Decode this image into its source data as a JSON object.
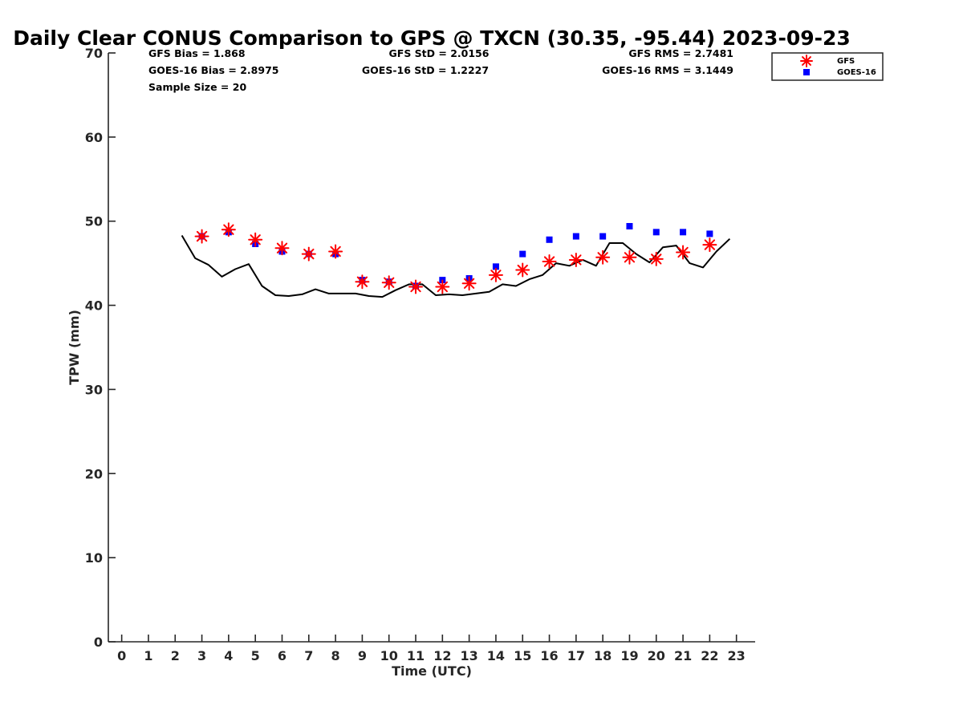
{
  "chart_data": {
    "type": "scatter",
    "title": "Daily Clear CONUS Comparison to GPS @ TXCN (30.35, -95.44) 2023-09-23",
    "xlabel": "Time (UTC)",
    "ylabel": "TPW (mm)",
    "xlim": [
      -0.5,
      23.7
    ],
    "ylim": [
      0,
      70
    ],
    "xticks": [
      "0",
      "1",
      "2",
      "3",
      "4",
      "5",
      "6",
      "7",
      "8",
      "9",
      "10",
      "11",
      "12",
      "13",
      "14",
      "15",
      "16",
      "17",
      "18",
      "19",
      "20",
      "21",
      "22",
      "23"
    ],
    "yticks": [
      "0",
      "10",
      "20",
      "30",
      "40",
      "50",
      "60",
      "70"
    ],
    "grid": false,
    "legend_position": "top-right",
    "stats": {
      "gfs_bias": "GFS Bias = 1.868",
      "goes_bias": "GOES-16 Bias = 2.8975",
      "sample_size": "Sample Size = 20",
      "gfs_std": "GFS StD = 2.0156",
      "goes_std": "GOES-16 StD = 1.2227",
      "gfs_rms": "GFS RMS = 2.7481",
      "goes_rms": "GOES-16 RMS = 3.1449"
    },
    "series": [
      {
        "name": "GFS",
        "marker": "asterisk",
        "color": "#ff0000",
        "x": [
          3,
          4,
          5,
          6,
          7,
          8,
          9,
          10,
          11,
          12,
          13,
          14,
          15,
          16,
          17,
          18,
          19,
          20,
          21,
          22
        ],
        "y": [
          48.2,
          49.0,
          47.8,
          46.8,
          46.1,
          46.4,
          42.8,
          42.7,
          42.2,
          42.2,
          42.6,
          43.6,
          44.2,
          45.2,
          45.4,
          45.7,
          45.7,
          45.5,
          46.3,
          47.2
        ]
      },
      {
        "name": "GOES-16",
        "marker": "square",
        "color": "#0000ff",
        "x": [
          3,
          4,
          5,
          6,
          7,
          8,
          9,
          10,
          11,
          12,
          13,
          14,
          15,
          16,
          17,
          18,
          19,
          20,
          21,
          22
        ],
        "y": [
          48.2,
          48.7,
          47.3,
          46.4,
          46.1,
          46.1,
          43.0,
          42.8,
          42.3,
          43.0,
          43.2,
          44.6,
          46.1,
          47.8,
          48.2,
          48.2,
          49.4,
          48.7,
          48.7,
          48.5
        ]
      },
      {
        "name": "GPS",
        "type": "line",
        "color": "#000000",
        "x": [
          2.25,
          2.75,
          3.25,
          3.75,
          4.25,
          4.75,
          5.25,
          5.75,
          6.25,
          6.75,
          7.25,
          7.75,
          8.25,
          8.75,
          9.25,
          9.75,
          10.25,
          10.75,
          11.25,
          11.75,
          12.25,
          12.75,
          13.25,
          13.75,
          14.25,
          14.75,
          15.25,
          15.75,
          16.25,
          16.75,
          17.25,
          17.75,
          18.25,
          18.75,
          19.25,
          19.75,
          20.25,
          20.75,
          21.25,
          21.75,
          22.25,
          22.75
        ],
        "y": [
          48.3,
          45.6,
          44.8,
          43.4,
          44.3,
          44.9,
          42.3,
          41.2,
          41.1,
          41.3,
          41.9,
          41.4,
          41.4,
          41.4,
          41.1,
          41.0,
          41.8,
          42.5,
          42.5,
          41.2,
          41.3,
          41.2,
          41.4,
          41.6,
          42.5,
          42.3,
          43.1,
          43.6,
          45.0,
          44.7,
          45.4,
          44.7,
          47.4,
          47.4,
          46.1,
          45.1,
          46.9,
          47.1,
          45.0,
          44.5,
          46.4,
          47.9
        ]
      }
    ]
  }
}
